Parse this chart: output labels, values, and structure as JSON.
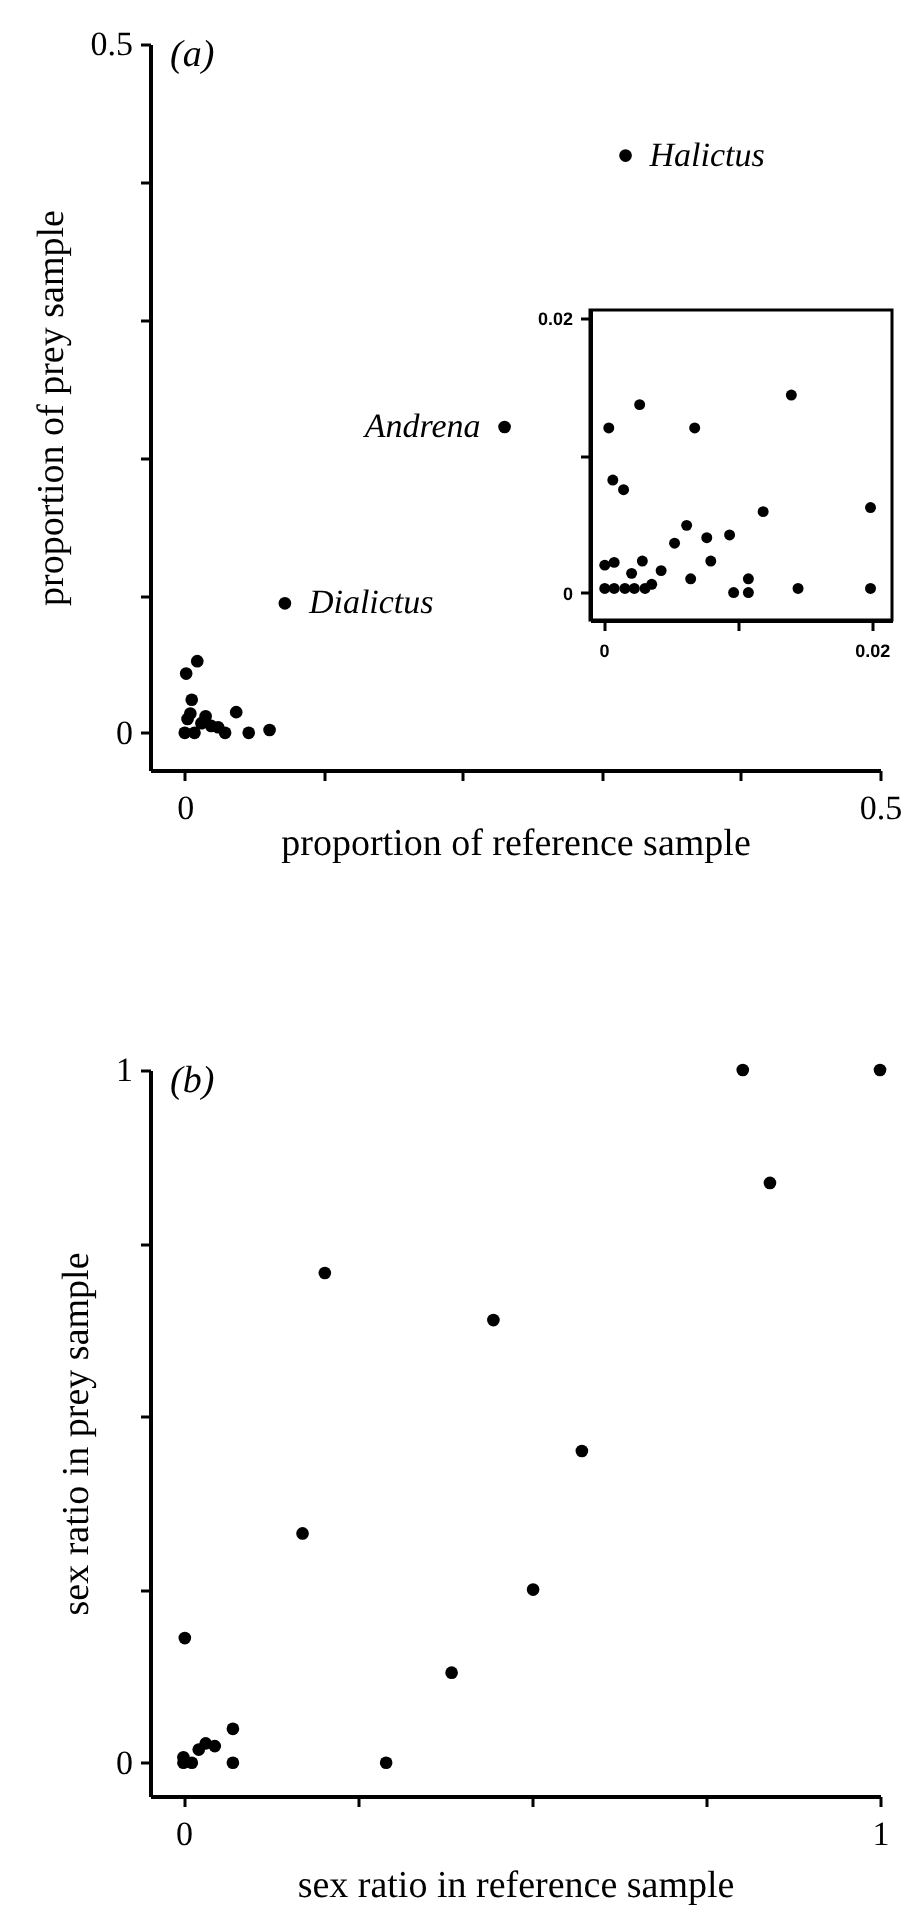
{
  "chart_data": [
    {
      "type": "scatter",
      "title": "(a)",
      "xlabel": "proportion of reference sample",
      "ylabel": "proportion of prey sample",
      "marker": "circle",
      "color": "#000000",
      "x": [
        0.317,
        0.23,
        0.072,
        0.001,
        0.009,
        0.005,
        0.037,
        0.046,
        0.061,
        0.002,
        0.012,
        0.019,
        0.029,
        0.007,
        0.0,
        0.004,
        0.015,
        0.024
      ],
      "values": [
        0.419,
        0.222,
        0.094,
        0.043,
        0.052,
        0.024,
        0.015,
        0.0,
        0.002,
        0.01,
        0.007,
        0.005,
        0.0,
        0.0,
        0.0,
        0.014,
        0.012,
        0.004
      ],
      "xlim": [
        -0.025,
        0.5
      ],
      "ylim": [
        -0.027,
        0.5
      ],
      "xticks": [
        0,
        {
          "value": 0.1,
          "label": null
        },
        {
          "value": 0.2,
          "label": null
        },
        {
          "value": 0.3,
          "label": null
        },
        {
          "value": 0.4,
          "label": null
        },
        0.5
      ],
      "yticks": [
        0,
        {
          "value": 0.1,
          "label": null
        },
        {
          "value": 0.2,
          "label": null
        },
        {
          "value": 0.3,
          "label": null
        },
        {
          "value": 0.4,
          "label": null
        },
        0.5
      ],
      "annotations": [
        {
          "text": "Halictus",
          "x": 0.317,
          "y": 0.419
        },
        {
          "text": "Andrena",
          "x": 0.23,
          "y": 0.222
        },
        {
          "text": "Dialictus",
          "x": 0.072,
          "y": 0.094
        }
      ]
    },
    {
      "type": "scatter",
      "marker": "circle",
      "color": "#000000",
      "x": [
        0.0004,
        0.0027,
        0.0068,
        0.014,
        0.0007,
        0.0015,
        0.0119,
        0.0199,
        0.0062,
        0.0053,
        0.0077,
        0.0094,
        0.008,
        0.0065,
        0.0043,
        0.0029,
        0.0001,
        0.0008,
        0.0021,
        0.0036,
        0.0097,
        0.0108,
        0.0108,
        0.0145,
        0.0199,
        0.0001,
        0.0008,
        0.0016,
        0.0023,
        0.0031
      ],
      "values": [
        0.012,
        0.0137,
        0.012,
        0.0144,
        0.0082,
        0.0075,
        0.0059,
        0.0062,
        0.0049,
        0.0036,
        0.004,
        0.0042,
        0.0023,
        0.001,
        0.0016,
        0.0023,
        0.002,
        0.0022,
        0.0014,
        0.0006,
        0.0,
        0.001,
        0.0,
        0.0003,
        0.0003,
        0.0003,
        0.0003,
        0.0003,
        0.0003,
        0.0003
      ],
      "xlim": [
        -0.001,
        0.0215
      ],
      "ylim": [
        -0.002,
        0.0206
      ],
      "xticks": [
        0,
        {
          "value": 0.01,
          "label": null
        },
        0.02
      ],
      "yticks": [
        0,
        {
          "value": 0.01,
          "label": null
        },
        0.02
      ]
    },
    {
      "type": "scatter",
      "title": "(b)",
      "xlabel": "sex ratio in reference sample",
      "ylabel": "sex ratio in prey sample",
      "marker": "circle",
      "color": "#000000",
      "x": [
        0.803,
        1.0,
        0.842,
        0.203,
        0.445,
        0.572,
        0.171,
        0.502,
        0.385,
        0.291,
        0.002,
        0.071,
        0.071,
        0.0,
        0.012,
        0.022,
        0.032,
        0.045,
        0.0
      ],
      "values": [
        1.0,
        1.0,
        0.837,
        0.707,
        0.639,
        0.45,
        0.331,
        0.25,
        0.13,
        0.0,
        0.18,
        0.049,
        0.0,
        0.008,
        0.0,
        0.019,
        0.028,
        0.024,
        0.0
      ],
      "xlim": [
        -0.048,
        1
      ],
      "ylim": [
        -0.048,
        1
      ],
      "xticks": [
        0,
        {
          "value": 0.25,
          "label": null
        },
        {
          "value": 0.5,
          "label": null
        },
        {
          "value": 0.75,
          "label": null
        },
        1
      ],
      "yticks": [
        0,
        {
          "value": 0.25,
          "label": null
        },
        {
          "value": 0.5,
          "label": null
        },
        {
          "value": 0.75,
          "label": null
        },
        1
      ]
    }
  ]
}
